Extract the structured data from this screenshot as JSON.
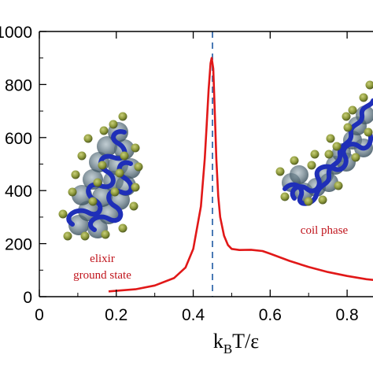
{
  "chart_data": {
    "type": "line",
    "title": "",
    "xlabel_main": "k",
    "xlabel_sub": "B",
    "xlabel_rest": "T/ε",
    "ylabel": "",
    "xlim": [
      0,
      0.9
    ],
    "ylim": [
      0,
      1000
    ],
    "x_ticks": [
      0,
      0.2,
      0.4,
      0.6,
      0.8
    ],
    "x_tick_labels": [
      "0",
      "0.2",
      "0.4",
      "0.6",
      "0.8"
    ],
    "y_ticks": [
      0,
      200,
      400,
      600,
      800,
      1000
    ],
    "y_tick_labels": [
      "0",
      "200",
      "400",
      "600",
      "800",
      "1000"
    ],
    "grid": false,
    "series": [
      {
        "color": "#e11818",
        "x": [
          0.18,
          0.25,
          0.3,
          0.35,
          0.38,
          0.4,
          0.42,
          0.43,
          0.435,
          0.44,
          0.445,
          0.448,
          0.452,
          0.456,
          0.46,
          0.465,
          0.47,
          0.48,
          0.49,
          0.5,
          0.52,
          0.55,
          0.58,
          0.6,
          0.65,
          0.7,
          0.75,
          0.8,
          0.85,
          0.9
        ],
        "y": [
          20,
          28,
          42,
          70,
          110,
          180,
          340,
          520,
          650,
          780,
          880,
          900,
          860,
          700,
          520,
          380,
          300,
          230,
          195,
          180,
          176,
          177,
          172,
          162,
          135,
          112,
          93,
          78,
          66,
          58
        ]
      }
    ],
    "vline": {
      "x": 0.45,
      "color": "#4a7ab5",
      "style": "dashed"
    },
    "annotations": [
      {
        "text": "elixir",
        "color": "#c0141c"
      },
      {
        "text": "ground state",
        "color": "#c0141c"
      },
      {
        "text": "coil phase",
        "color": "#c0141c"
      }
    ]
  }
}
